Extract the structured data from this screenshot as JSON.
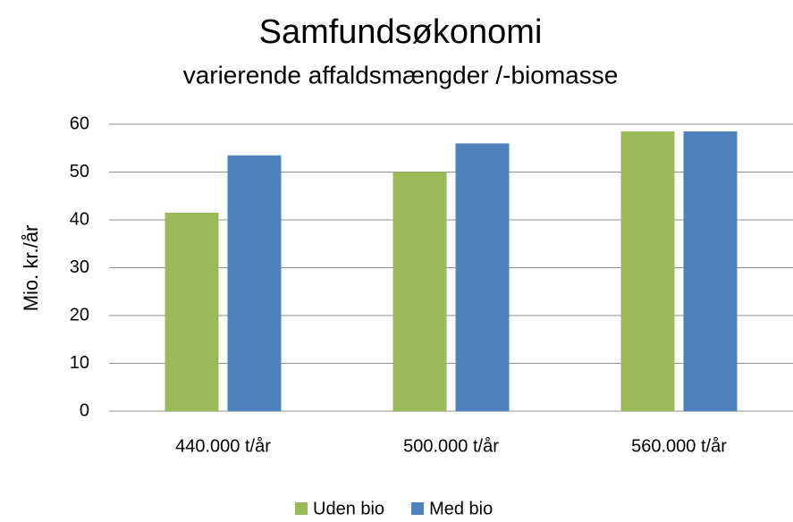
{
  "chart_data": {
    "type": "bar",
    "title": "Samfundsøkonomi",
    "subtitle": "varierende affaldsmængder /-biomasse",
    "y_label": "Mio. kr./år",
    "categories": [
      "440.000 t/år",
      "500.000 t/år",
      "560.000 t/år"
    ],
    "series": [
      {
        "name": "Uden bio",
        "color": "#9bbb59",
        "values": [
          41.5,
          50,
          58.5
        ]
      },
      {
        "name": "Med bio",
        "color": "#4f81bd",
        "values": [
          53.5,
          56,
          58.5
        ]
      }
    ],
    "ylim": [
      0,
      60
    ],
    "yticks": [
      0,
      10,
      20,
      30,
      40,
      50,
      60
    ],
    "grid": true,
    "legend": "bottom"
  }
}
